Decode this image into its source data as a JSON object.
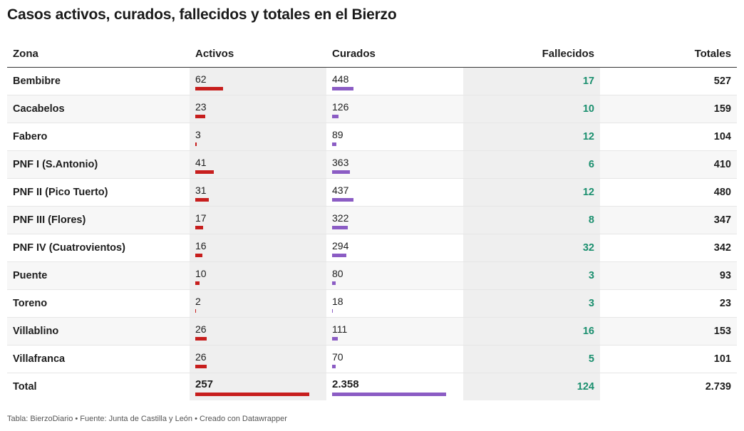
{
  "title": "Casos activos, curados, fallecidos y totales en el Bierzo",
  "footer": "Tabla: BierzoDiario • Fuente: Junta de Castilla y León • Creado con Datawrapper",
  "colors": {
    "activos_bar": "#c71e1d",
    "curados_bar": "#8b5cc4",
    "fallecidos_text": "#1a8f6e"
  },
  "chart_data": {
    "type": "table",
    "columns": [
      "Zona",
      "Activos",
      "Curados",
      "Fallecidos",
      "Totales"
    ],
    "rows": [
      {
        "zona": "Bembibre",
        "activos": 62,
        "curados": 448,
        "fallecidos": 17,
        "totales": 527,
        "activos_label": "62",
        "curados_label": "448",
        "fallecidos_label": "17",
        "totales_label": "527"
      },
      {
        "zona": "Cacabelos",
        "activos": 23,
        "curados": 126,
        "fallecidos": 10,
        "totales": 159,
        "activos_label": "23",
        "curados_label": "126",
        "fallecidos_label": "10",
        "totales_label": "159"
      },
      {
        "zona": "Fabero",
        "activos": 3,
        "curados": 89,
        "fallecidos": 12,
        "totales": 104,
        "activos_label": "3",
        "curados_label": "89",
        "fallecidos_label": "12",
        "totales_label": "104"
      },
      {
        "zona": "PNF I (S.Antonio)",
        "activos": 41,
        "curados": 363,
        "fallecidos": 6,
        "totales": 410,
        "activos_label": "41",
        "curados_label": "363",
        "fallecidos_label": "6",
        "totales_label": "410"
      },
      {
        "zona": "PNF II (Pico Tuerto)",
        "activos": 31,
        "curados": 437,
        "fallecidos": 12,
        "totales": 480,
        "activos_label": "31",
        "curados_label": "437",
        "fallecidos_label": "12",
        "totales_label": "480"
      },
      {
        "zona": "PNF III (Flores)",
        "activos": 17,
        "curados": 322,
        "fallecidos": 8,
        "totales": 347,
        "activos_label": "17",
        "curados_label": "322",
        "fallecidos_label": "8",
        "totales_label": "347"
      },
      {
        "zona": "PNF IV (Cuatrovientos)",
        "activos": 16,
        "curados": 294,
        "fallecidos": 32,
        "totales": 342,
        "activos_label": "16",
        "curados_label": "294",
        "fallecidos_label": "32",
        "totales_label": "342"
      },
      {
        "zona": "Puente",
        "activos": 10,
        "curados": 80,
        "fallecidos": 3,
        "totales": 93,
        "activos_label": "10",
        "curados_label": "80",
        "fallecidos_label": "3",
        "totales_label": "93"
      },
      {
        "zona": "Toreno",
        "activos": 2,
        "curados": 18,
        "fallecidos": 3,
        "totales": 23,
        "activos_label": "2",
        "curados_label": "18",
        "fallecidos_label": "3",
        "totales_label": "23"
      },
      {
        "zona": "Villablino",
        "activos": 26,
        "curados": 111,
        "fallecidos": 16,
        "totales": 153,
        "activos_label": "26",
        "curados_label": "111",
        "fallecidos_label": "16",
        "totales_label": "153"
      },
      {
        "zona": "Villafranca",
        "activos": 26,
        "curados": 70,
        "fallecidos": 5,
        "totales": 101,
        "activos_label": "26",
        "curados_label": "70",
        "fallecidos_label": "5",
        "totales_label": "101"
      },
      {
        "zona": "Total",
        "activos": 257,
        "curados": 2358,
        "fallecidos": 124,
        "totales": 2739,
        "activos_label": "257",
        "curados_label": "2.358",
        "fallecidos_label": "124",
        "totales_label": "2.739"
      }
    ]
  }
}
